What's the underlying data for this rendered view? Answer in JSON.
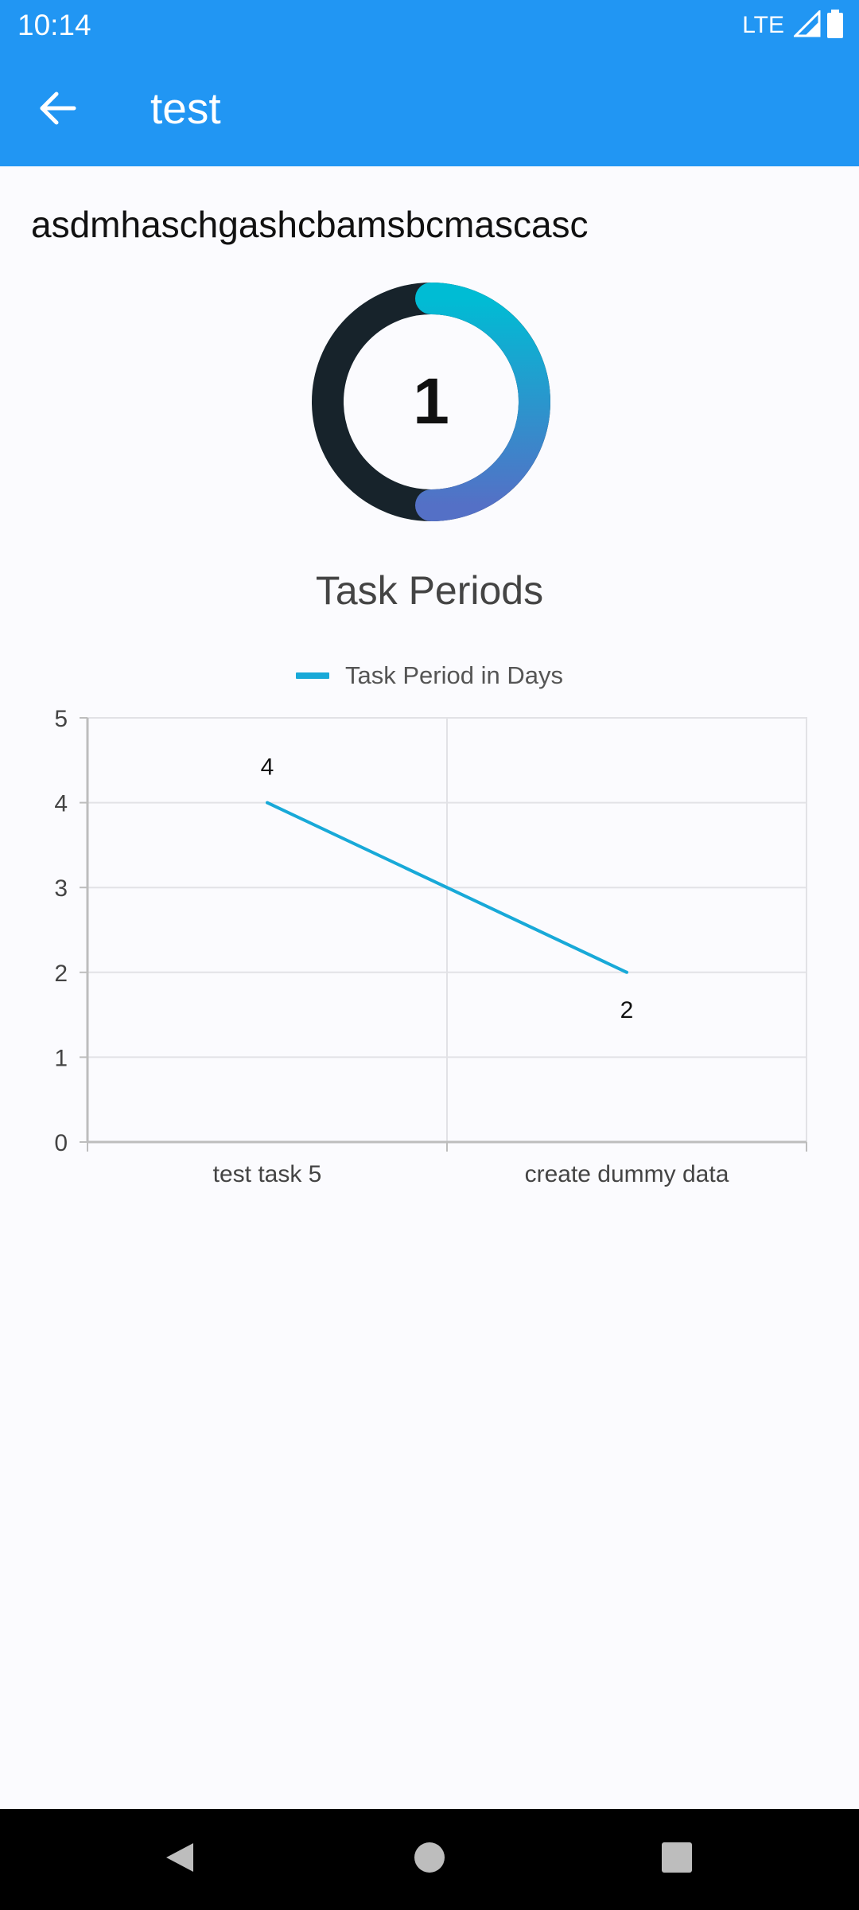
{
  "status_bar": {
    "time": "10:14",
    "network": "LTE",
    "icons": [
      "signal-icon",
      "battery-icon"
    ]
  },
  "app_bar": {
    "title": "test",
    "back_icon": "arrow-back-icon"
  },
  "task": {
    "name": "asdmhaschgashcbamsbcmascasc"
  },
  "progress_ring": {
    "value": "1",
    "fraction_filled": 0.5,
    "track_color": "#17232b",
    "fill_gradient": [
      "#00bcd4",
      "#5470c6"
    ]
  },
  "chart_title": "Task Periods",
  "chart_data": {
    "type": "line",
    "title": "Task Periods",
    "categories": [
      "test task 5",
      "create dummy data"
    ],
    "series": [
      {
        "name": "Task Period in Days",
        "values": [
          4,
          2
        ],
        "color": "#18a9d8"
      }
    ],
    "ylim": [
      0,
      5
    ],
    "yticks": [
      "0",
      "1",
      "2",
      "3",
      "4",
      "5"
    ],
    "data_labels": [
      "4",
      "2"
    ],
    "grid": true,
    "legend_position": "top-center"
  },
  "nav_bar": {
    "icons": [
      "back-triangle-icon",
      "home-circle-icon",
      "recents-square-icon"
    ]
  }
}
